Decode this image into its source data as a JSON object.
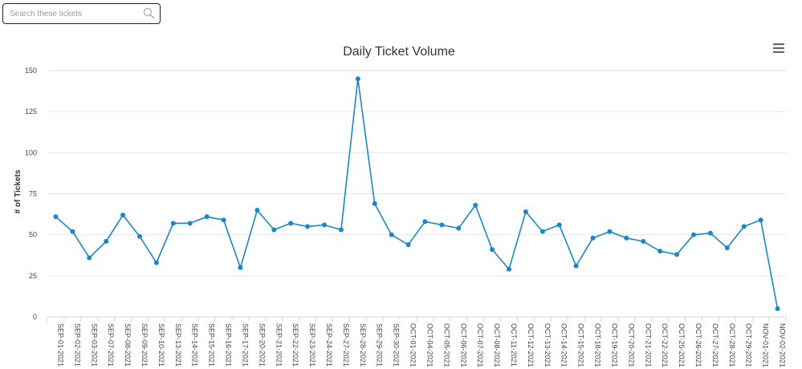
{
  "search": {
    "placeholder": "Search these tickets",
    "value": ""
  },
  "icons": {
    "search": "search-icon",
    "menu": "hamburger-menu-icon"
  },
  "colors": {
    "series": "#1a87c7",
    "grid": "#e6e6e6",
    "axis": "#ccd6eb"
  },
  "chart_data": {
    "type": "line",
    "title": "Daily Ticket Volume",
    "xlabel": "",
    "ylabel": "# of Tickets",
    "ylim": [
      0,
      150
    ],
    "yticks": [
      0,
      25,
      50,
      75,
      100,
      125,
      150
    ],
    "grid": true,
    "categories": [
      "SEP-01-2021",
      "SEP-02-2021",
      "SEP-03-2021",
      "SEP-07-2021",
      "SEP-08-2021",
      "SEP-09-2021",
      "SEP-10-2021",
      "SEP-13-2021",
      "SEP-14-2021",
      "SEP-15-2021",
      "SEP-16-2021",
      "SEP-17-2021",
      "SEP-20-2021",
      "SEP-21-2021",
      "SEP-22-2021",
      "SEP-23-2021",
      "SEP-24-2021",
      "SEP-27-2021",
      "SEP-28-2021",
      "SEP-29-2021",
      "SEP-30-2021",
      "OCT-01-2021",
      "OCT-04-2021",
      "OCT-05-2021",
      "OCT-06-2021",
      "OCT-07-2021",
      "OCT-08-2021",
      "OCT-11-2021",
      "OCT-12-2021",
      "OCT-13-2021",
      "OCT-14-2021",
      "OCT-15-2021",
      "OCT-18-2021",
      "OCT-19-2021",
      "OCT-20-2021",
      "OCT-21-2021",
      "OCT-22-2021",
      "OCT-25-2021",
      "OCT-26-2021",
      "OCT-27-2021",
      "OCT-28-2021",
      "OCT-29-2021",
      "NOV-01-2021",
      "NOV-02-2021"
    ],
    "series": [
      {
        "values": [
          61,
          52,
          36,
          46,
          62,
          49,
          33,
          57,
          57,
          61,
          59,
          30,
          65,
          53,
          57,
          55,
          56,
          53,
          145,
          69,
          50,
          44,
          58,
          56,
          54,
          68,
          41,
          29,
          64,
          52,
          56,
          31,
          48,
          52,
          48,
          46,
          40,
          38,
          50,
          51,
          42,
          55,
          59,
          5
        ]
      }
    ]
  }
}
